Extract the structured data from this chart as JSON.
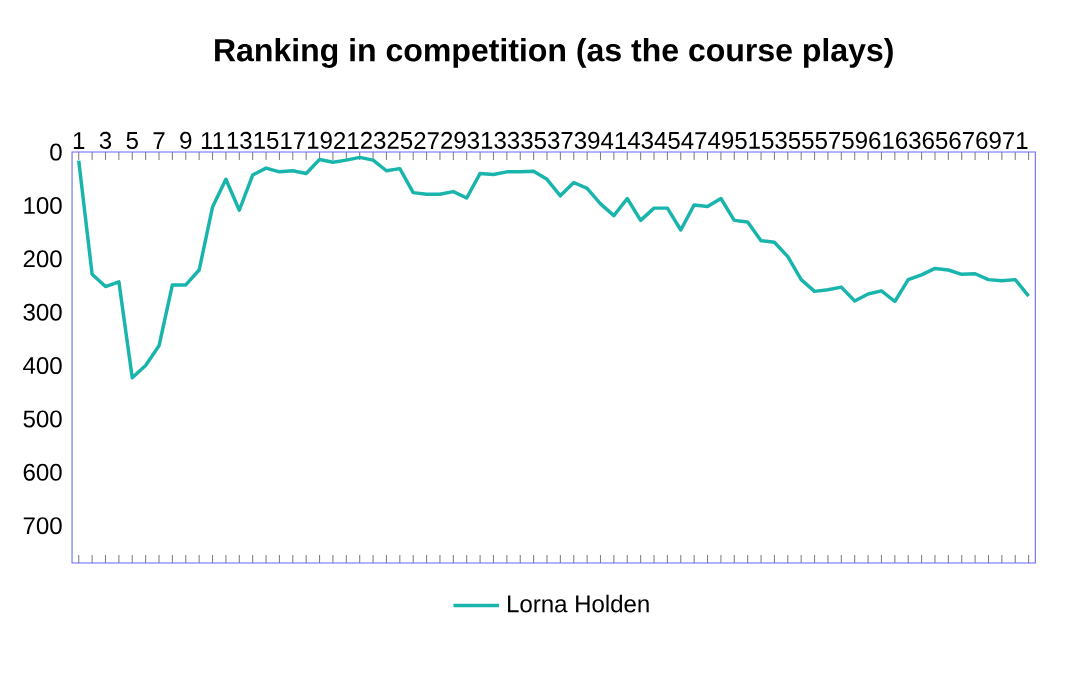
{
  "chart_data": {
    "type": "line",
    "title": "Ranking in competition (as the course plays)",
    "categories": [
      "1",
      null,
      "3",
      null,
      "5",
      null,
      "7",
      null,
      "9",
      null,
      "11",
      null,
      "13",
      null,
      "15",
      null,
      "17",
      null,
      "19",
      null,
      "21",
      null,
      "23",
      null,
      "25",
      null,
      "27",
      null,
      "29",
      null,
      "31",
      null,
      "33",
      null,
      "35",
      null,
      "37",
      null,
      "39",
      null,
      "41",
      null,
      "43",
      null,
      "45",
      null,
      "47",
      null,
      "49",
      null,
      "51",
      null,
      "53",
      null,
      "55",
      null,
      "57",
      null,
      "59",
      null,
      "61",
      null,
      "63",
      null,
      "65",
      null,
      "67",
      null,
      "69",
      null,
      "71",
      null
    ],
    "series": [
      {
        "name": "Lorna Holden",
        "color": "#19b5ad",
        "values": [
          16,
          229,
          252,
          243,
          423,
          400,
          363,
          249,
          249,
          221,
          103,
          51,
          109,
          43,
          30,
          37,
          35,
          40,
          14,
          19,
          15,
          10,
          15,
          35,
          31,
          76,
          79,
          79,
          74,
          86,
          40,
          42,
          37,
          37,
          36,
          51,
          82,
          57,
          68,
          97,
          119,
          87,
          128,
          105,
          105,
          146,
          99,
          102,
          87,
          128,
          131,
          166,
          169,
          196,
          239,
          261,
          258,
          253,
          279,
          266,
          260,
          280,
          239,
          230,
          218,
          221,
          229,
          228,
          239,
          241,
          239,
          270
        ]
      }
    ],
    "ylim": [
      770,
      0
    ],
    "yticks": [
      0,
      100,
      200,
      300,
      400,
      500,
      600,
      700
    ],
    "legend": "bottom",
    "grid": false,
    "marker": "none",
    "line_style": "solid"
  }
}
